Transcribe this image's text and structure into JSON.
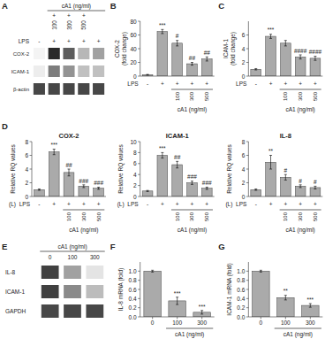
{
  "chart_data": [
    {
      "type": "blot",
      "annotations": {
        "panel": "A",
        "row_label": "LPS",
        "group_label": "cA1 (ng/ml)",
        "group_values": [
          null,
          [
            "+",
            "100"
          ],
          [
            "+",
            "300"
          ],
          [
            "+",
            "500"
          ],
          null
        ]
      },
      "categories": [
        "-",
        "+",
        "+",
        "+",
        "+"
      ],
      "rows": [
        "COX-2",
        "ICAM-1",
        "β-actin"
      ],
      "cells": [
        [
          0.05,
          0.95,
          0.72,
          0.32,
          0.42
        ],
        [
          0.08,
          0.58,
          0.48,
          0.28,
          0.28
        ],
        [
          0.82,
          0.82,
          0.82,
          0.82,
          0.82
        ]
      ]
    },
    {
      "type": "bar",
      "ylabel": "COX-2\n(fold change)",
      "categories": [
        "-",
        "+",
        "+",
        "+",
        "+"
      ],
      "values": [
        2,
        65,
        48,
        18,
        25
      ],
      "errors": [
        0.5,
        3,
        4,
        2,
        3
      ],
      "color": "#aaaaaa",
      "ylim": [
        0,
        80
      ],
      "yticks": [
        0,
        20,
        40,
        60,
        80
      ],
      "annotations": {
        "panel": "B",
        "significance": [
          null,
          "***",
          "#",
          "##",
          "##"
        ],
        "row_label": "LPS",
        "group_label": "cA1 (ng/ml)",
        "group_values": [
          null,
          null,
          "100",
          "300",
          "500"
        ]
      }
    },
    {
      "type": "bar",
      "ylabel": "ICAM-1\n(fold change)",
      "categories": [
        "-",
        "+",
        "+",
        "+",
        "+"
      ],
      "values": [
        1,
        5.8,
        4.8,
        2.8,
        2.6
      ],
      "errors": [
        0.1,
        0.3,
        0.4,
        0.3,
        0.3
      ],
      "color": "#aaaaaa",
      "ylim": [
        0,
        8
      ],
      "yticks": [
        0,
        2,
        4,
        6
      ],
      "annotations": {
        "panel": "C",
        "significance": [
          null,
          "***",
          null,
          "####",
          "####"
        ],
        "row_label": "LPS",
        "group_label": "cA1 (ng/ml)",
        "group_values": [
          null,
          null,
          "100",
          "300",
          "500"
        ]
      }
    },
    {
      "type": "bar",
      "title": "COX-2",
      "ylabel": "Relative RQ values",
      "categories": [
        "-",
        "+",
        "+",
        "+",
        "+"
      ],
      "values": [
        1,
        6.5,
        3.5,
        1.5,
        1.2
      ],
      "errors": [
        0.1,
        0.4,
        0.5,
        0.2,
        0.15
      ],
      "color": "#aaaaaa",
      "ylim": [
        0,
        8
      ],
      "yticks": [
        0,
        2,
        4,
        6,
        8
      ],
      "annotations": {
        "panel": "D",
        "note": "(L)",
        "significance": [
          null,
          "***",
          "##",
          "###",
          "###"
        ],
        "row_label": "LPS",
        "group_label": "cA1 (ng/ml)",
        "group_values": [
          null,
          null,
          "100",
          "300",
          "500"
        ]
      }
    },
    {
      "type": "bar",
      "title": "ICAM-1",
      "ylabel": "Relative RQ values",
      "categories": [
        "-",
        "+",
        "+",
        "+",
        "+"
      ],
      "values": [
        1,
        7.5,
        5.8,
        2.5,
        1.5
      ],
      "errors": [
        0.1,
        0.5,
        0.6,
        0.3,
        0.2
      ],
      "color": "#aaaaaa",
      "ylim": [
        0,
        10
      ],
      "yticks": [
        0,
        2,
        4,
        6,
        8,
        10
      ],
      "annotations": {
        "note": "(L)",
        "significance": [
          null,
          "***",
          "##",
          "###",
          "###"
        ],
        "row_label": "LPS",
        "group_label": "cA1 (ng/ml)",
        "group_values": [
          null,
          null,
          "100",
          "300",
          "500"
        ]
      }
    },
    {
      "type": "bar",
      "title": "IL-8",
      "ylabel": "Relative RQ values",
      "categories": [
        "-",
        "+",
        "+",
        "+",
        "+"
      ],
      "values": [
        1,
        5.0,
        2.8,
        1.5,
        1.3
      ],
      "errors": [
        0.1,
        1.0,
        0.4,
        0.2,
        0.2
      ],
      "color": "#aaaaaa",
      "ylim": [
        0,
        8
      ],
      "yticks": [
        0,
        2,
        4,
        6,
        8
      ],
      "annotations": {
        "note": "(L)",
        "significance": [
          null,
          "**",
          "#",
          "#",
          "#"
        ],
        "row_label": "LPS",
        "group_label": "cA1 (ng/ml)",
        "group_values": [
          null,
          null,
          "100",
          "300",
          "500"
        ]
      }
    },
    {
      "type": "blot",
      "annotations": {
        "panel": "E",
        "group_label": "cA1 (ng/ml)"
      },
      "categories": [
        "0",
        "100",
        "300"
      ],
      "rows": [
        "IL-8",
        "ICAM-1",
        "GAPDH"
      ],
      "cells": [
        [
          0.85,
          0.42,
          0.12
        ],
        [
          0.85,
          0.52,
          0.3
        ],
        [
          0.82,
          0.82,
          0.82
        ]
      ]
    },
    {
      "type": "bar",
      "ylabel": "IL-8 mRNA (fold)",
      "categories": [
        "0",
        "100",
        "300"
      ],
      "values": [
        1.0,
        0.35,
        0.1
      ],
      "errors": [
        0.02,
        0.08,
        0.04
      ],
      "color": "#aaaaaa",
      "ylim": [
        0,
        1.2
      ],
      "yticks": [
        {
          "value": 0,
          "label": "0.0"
        },
        0.2,
        0.4,
        0.6,
        0.8,
        {
          "value": 1,
          "label": "1.0"
        }
      ],
      "annotations": {
        "panel": "F",
        "significance": [
          null,
          "***",
          "***"
        ],
        "group_label": "cA1 (ng/ml)"
      }
    },
    {
      "type": "bar",
      "ylabel": "ICAM-1 mRNA (fold)",
      "categories": [
        "0",
        "100",
        "300"
      ],
      "values": [
        1.0,
        0.42,
        0.25
      ],
      "errors": [
        0.02,
        0.05,
        0.04
      ],
      "color": "#aaaaaa",
      "ylim": [
        0,
        1.2
      ],
      "yticks": [
        {
          "value": 0,
          "label": "0.0"
        },
        0.2,
        0.4,
        0.6,
        0.8,
        {
          "value": 1,
          "label": "1.0"
        }
      ],
      "annotations": {
        "panel": "G",
        "significance": [
          null,
          "**",
          "***"
        ],
        "group_label": "cA1 (ng/ml)"
      }
    }
  ]
}
